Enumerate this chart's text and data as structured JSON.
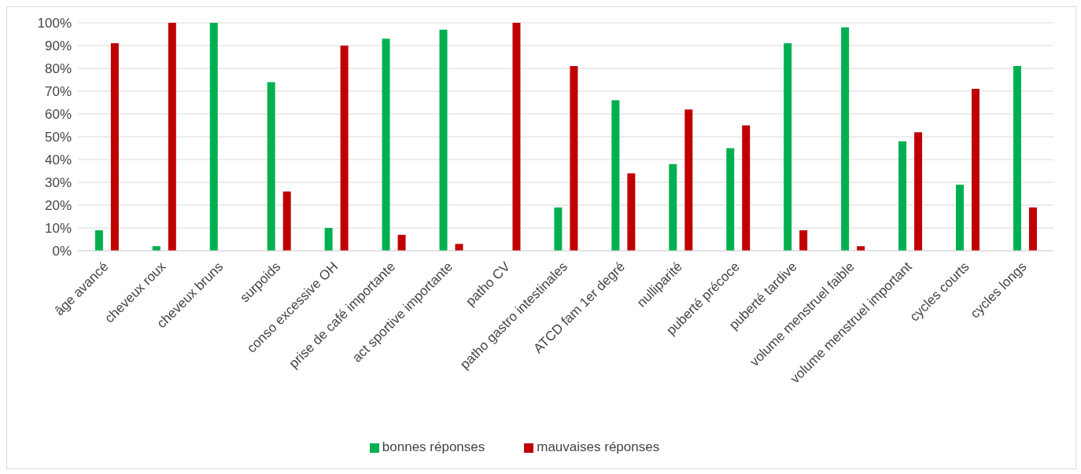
{
  "chart_data": {
    "type": "bar",
    "categories": [
      "âge avancé",
      "cheveux roux",
      "cheveux bruns",
      "surpoids",
      "conso excessive OH",
      "prise de café importante",
      "act sportive importante",
      "patho CV",
      "patho gastro intestinales",
      "ATCD fam 1er degré",
      "nulliparité",
      "puberté précoce",
      "puberté tardive",
      "volume menstruel faible",
      "volume menstruel important",
      "cycles courts",
      "cycles longs"
    ],
    "series": [
      {
        "name": "bonnes réponses",
        "color": "#00b050",
        "values": [
          9,
          2,
          100,
          74,
          10,
          93,
          97,
          0,
          19,
          66,
          38,
          45,
          91,
          98,
          48,
          29,
          81
        ]
      },
      {
        "name": "mauvaises réponses",
        "color": "#c00000",
        "values": [
          91,
          100,
          0,
          26,
          90,
          7,
          3,
          100,
          81,
          34,
          62,
          55,
          9,
          2,
          52,
          71,
          19
        ]
      }
    ],
    "ylim": [
      0,
      100
    ],
    "yticks": [
      {
        "value": 0,
        "label": "0%"
      },
      {
        "value": 10,
        "label": "10%"
      },
      {
        "value": 20,
        "label": "20%"
      },
      {
        "value": 30,
        "label": "30%"
      },
      {
        "value": 40,
        "label": "40%"
      },
      {
        "value": 50,
        "label": "50%"
      },
      {
        "value": 60,
        "label": "60%"
      },
      {
        "value": 70,
        "label": "70%"
      },
      {
        "value": 80,
        "label": "80%"
      },
      {
        "value": 90,
        "label": "90%"
      },
      {
        "value": 100,
        "label": "100%"
      }
    ],
    "grid": "y",
    "legend": "bottom"
  }
}
